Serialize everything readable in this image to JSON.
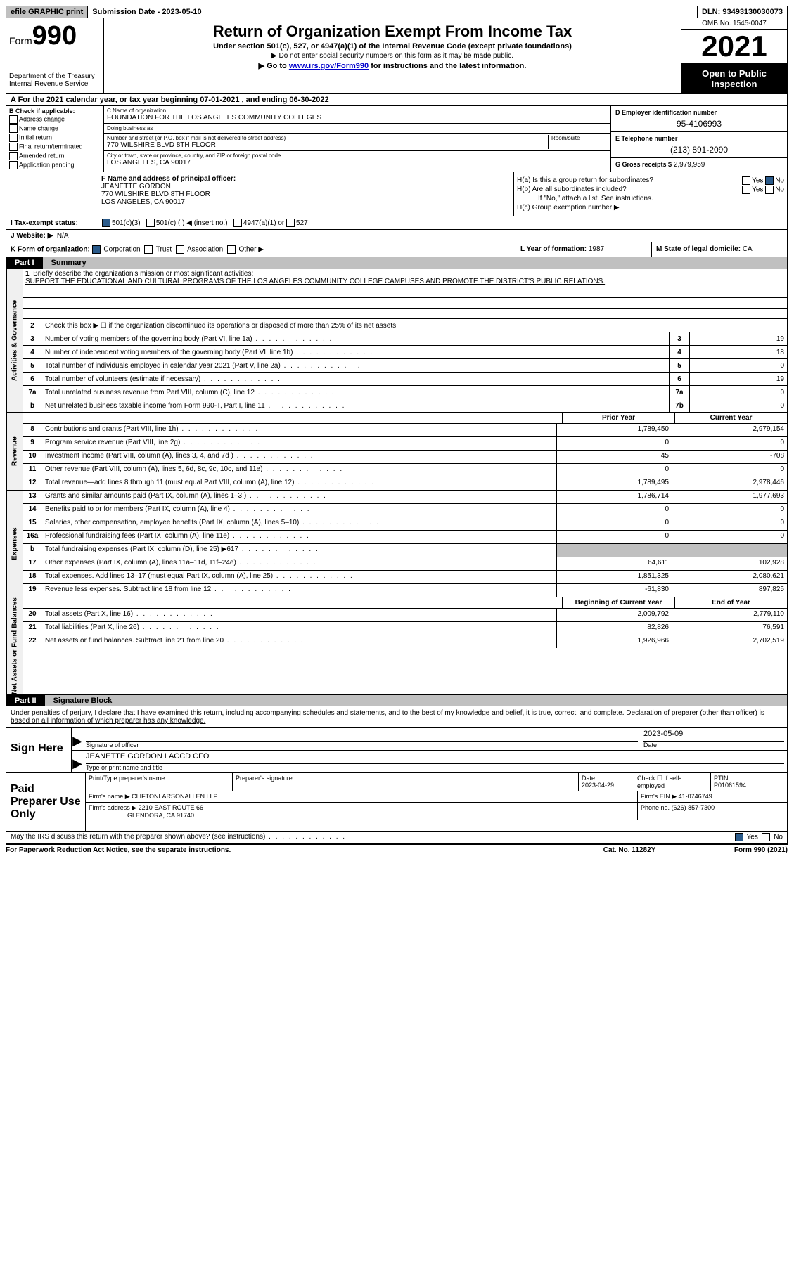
{
  "topbar": {
    "efile": "efile GRAPHIC print",
    "submission_label": "Submission Date - 2023-05-10",
    "dln": "DLN: 93493130030073"
  },
  "header": {
    "form_label": "Form",
    "form_num": "990",
    "dept": "Department of the Treasury",
    "irs": "Internal Revenue Service",
    "title": "Return of Organization Exempt From Income Tax",
    "subtitle": "Under section 501(c), 527, or 4947(a)(1) of the Internal Revenue Code (except private foundations)",
    "note1": "▶ Do not enter social security numbers on this form as it may be made public.",
    "note2_pre": "▶ Go to ",
    "note2_link": "www.irs.gov/Form990",
    "note2_post": " for instructions and the latest information.",
    "omb": "OMB No. 1545-0047",
    "year": "2021",
    "open": "Open to Public Inspection"
  },
  "sectionA": {
    "text": "A For the 2021 calendar year, or tax year beginning 07-01-2021   , and ending 06-30-2022"
  },
  "sectionB": {
    "label": "B Check if applicable:",
    "items": [
      "Address change",
      "Name change",
      "Initial return",
      "Final return/terminated",
      "Amended return",
      "Application pending"
    ]
  },
  "sectionC": {
    "name_label": "C Name of organization",
    "name": "FOUNDATION FOR THE LOS ANGELES COMMUNITY COLLEGES",
    "dba_label": "Doing business as",
    "dba": "",
    "street_label": "Number and street (or P.O. box if mail is not delivered to street address)",
    "street": "770 WILSHIRE BLVD 8TH FLOOR",
    "room_label": "Room/suite",
    "city_label": "City or town, state or province, country, and ZIP or foreign postal code",
    "city": "LOS ANGELES, CA  90017"
  },
  "sectionD": {
    "ein_label": "D Employer identification number",
    "ein": "95-4106993",
    "phone_label": "E Telephone number",
    "phone": "(213) 891-2090",
    "gross_label": "G Gross receipts $",
    "gross": "2,979,959"
  },
  "sectionF": {
    "label": "F Name and address of principal officer:",
    "name": "JEANETTE GORDON",
    "addr1": "770 WILSHIRE BLVD 8TH FLOOR",
    "addr2": "LOS ANGELES, CA  90017"
  },
  "sectionH": {
    "ha": "H(a)  Is this a group return for subordinates?",
    "hb": "H(b)  Are all subordinates included?",
    "hb_note": "If \"No,\" attach a list. See instructions.",
    "hc": "H(c)  Group exemption number ▶",
    "yes": "Yes",
    "no": "No"
  },
  "sectionI": {
    "label": "I  Tax-exempt status:",
    "opt1": "501(c)(3)",
    "opt2": "501(c) (   ) ◀ (insert no.)",
    "opt3": "4947(a)(1) or",
    "opt4": "527"
  },
  "sectionJ": {
    "label": "J  Website: ▶",
    "val": "N/A"
  },
  "sectionK": {
    "label": "K Form of organization:",
    "opts": [
      "Corporation",
      "Trust",
      "Association",
      "Other ▶"
    ]
  },
  "sectionL": {
    "label": "L Year of formation:",
    "val": "1987"
  },
  "sectionM": {
    "label": "M State of legal domicile:",
    "val": "CA"
  },
  "parts": {
    "p1": "Part I",
    "p1_title": "Summary",
    "p2": "Part II",
    "p2_title": "Signature Block"
  },
  "summary": {
    "line1_label": "Briefly describe the organization's mission or most significant activities:",
    "mission": "SUPPORT THE EDUCATIONAL AND CULTURAL PROGRAMS OF THE LOS ANGELES COMMUNITY COLLEGE CAMPUSES AND PROMOTE THE DISTRICT'S PUBLIC RELATIONS.",
    "line2": "Check this box ▶ ☐ if the organization discontinued its operations or disposed of more than 25% of its net assets.",
    "sidelabels": {
      "act": "Activities & Governance",
      "rev": "Revenue",
      "exp": "Expenses",
      "net": "Net Assets or Fund Balances"
    },
    "rows_ag": [
      {
        "n": "3",
        "label": "Number of voting members of the governing body (Part VI, line 1a)",
        "box": "3",
        "val": "19"
      },
      {
        "n": "4",
        "label": "Number of independent voting members of the governing body (Part VI, line 1b)",
        "box": "4",
        "val": "18"
      },
      {
        "n": "5",
        "label": "Total number of individuals employed in calendar year 2021 (Part V, line 2a)",
        "box": "5",
        "val": "0"
      },
      {
        "n": "6",
        "label": "Total number of volunteers (estimate if necessary)",
        "box": "6",
        "val": "19"
      },
      {
        "n": "7a",
        "label": "Total unrelated business revenue from Part VIII, column (C), line 12",
        "box": "7a",
        "val": "0"
      },
      {
        "n": "b",
        "label": "Net unrelated business taxable income from Form 990-T, Part I, line 11",
        "box": "7b",
        "val": "0"
      }
    ],
    "col_prior": "Prior Year",
    "col_current": "Current Year",
    "rows_rev": [
      {
        "n": "8",
        "label": "Contributions and grants (Part VIII, line 1h)",
        "prior": "1,789,450",
        "curr": "2,979,154"
      },
      {
        "n": "9",
        "label": "Program service revenue (Part VIII, line 2g)",
        "prior": "0",
        "curr": "0"
      },
      {
        "n": "10",
        "label": "Investment income (Part VIII, column (A), lines 3, 4, and 7d )",
        "prior": "45",
        "curr": "-708"
      },
      {
        "n": "11",
        "label": "Other revenue (Part VIII, column (A), lines 5, 6d, 8c, 9c, 10c, and 11e)",
        "prior": "0",
        "curr": "0"
      },
      {
        "n": "12",
        "label": "Total revenue—add lines 8 through 11 (must equal Part VIII, column (A), line 12)",
        "prior": "1,789,495",
        "curr": "2,978,446"
      }
    ],
    "rows_exp": [
      {
        "n": "13",
        "label": "Grants and similar amounts paid (Part IX, column (A), lines 1–3 )",
        "prior": "1,786,714",
        "curr": "1,977,693"
      },
      {
        "n": "14",
        "label": "Benefits paid to or for members (Part IX, column (A), line 4)",
        "prior": "0",
        "curr": "0"
      },
      {
        "n": "15",
        "label": "Salaries, other compensation, employee benefits (Part IX, column (A), lines 5–10)",
        "prior": "0",
        "curr": "0"
      },
      {
        "n": "16a",
        "label": "Professional fundraising fees (Part IX, column (A), line 11e)",
        "prior": "0",
        "curr": "0"
      },
      {
        "n": "b",
        "label": "Total fundraising expenses (Part IX, column (D), line 25) ▶617",
        "prior": "",
        "curr": "",
        "grey": true
      },
      {
        "n": "17",
        "label": "Other expenses (Part IX, column (A), lines 11a–11d, 11f–24e)",
        "prior": "64,611",
        "curr": "102,928"
      },
      {
        "n": "18",
        "label": "Total expenses. Add lines 13–17 (must equal Part IX, column (A), line 25)",
        "prior": "1,851,325",
        "curr": "2,080,621"
      },
      {
        "n": "19",
        "label": "Revenue less expenses. Subtract line 18 from line 12",
        "prior": "-61,830",
        "curr": "897,825"
      }
    ],
    "col_begin": "Beginning of Current Year",
    "col_end": "End of Year",
    "rows_net": [
      {
        "n": "20",
        "label": "Total assets (Part X, line 16)",
        "prior": "2,009,792",
        "curr": "2,779,110"
      },
      {
        "n": "21",
        "label": "Total liabilities (Part X, line 26)",
        "prior": "82,826",
        "curr": "76,591"
      },
      {
        "n": "22",
        "label": "Net assets or fund balances. Subtract line 21 from line 20",
        "prior": "1,926,966",
        "curr": "2,702,519"
      }
    ]
  },
  "sig": {
    "penalties": "Under penalties of perjury, I declare that I have examined this return, including accompanying schedules and statements, and to the best of my knowledge and belief, it is true, correct, and complete. Declaration of preparer (other than officer) is based on all information of which preparer has any knowledge.",
    "sign_here": "Sign Here",
    "sig_officer_label": "Signature of officer",
    "sig_date": "2023-05-09",
    "date_label": "Date",
    "name_type": "JEANETTE GORDON LACCD CFO",
    "name_type_label": "Type or print name and title",
    "paid": "Paid Preparer Use Only",
    "print_label": "Print/Type preparer's name",
    "prep_sig_label": "Preparer's signature",
    "prep_date_label": "Date",
    "prep_date": "2023-04-29",
    "check_self": "Check ☐ if self-employed",
    "ptin_label": "PTIN",
    "ptin": "P01061594",
    "firm_name_label": "Firm's name    ▶",
    "firm_name": "CLIFTONLARSONALLEN LLP",
    "firm_ein_label": "Firm's EIN ▶",
    "firm_ein": "41-0746749",
    "firm_addr_label": "Firm's address ▶",
    "firm_addr1": "2210 EAST ROUTE 66",
    "firm_addr2": "GLENDORA, CA  91740",
    "firm_phone_label": "Phone no.",
    "firm_phone": "(626) 857-7300",
    "irs_discuss": "May the IRS discuss this return with the preparer shown above? (see instructions)",
    "yes": "Yes",
    "no": "No"
  },
  "footer": {
    "paperwork": "For Paperwork Reduction Act Notice, see the separate instructions.",
    "cat": "Cat. No. 11282Y",
    "form": "Form 990 (2021)"
  }
}
